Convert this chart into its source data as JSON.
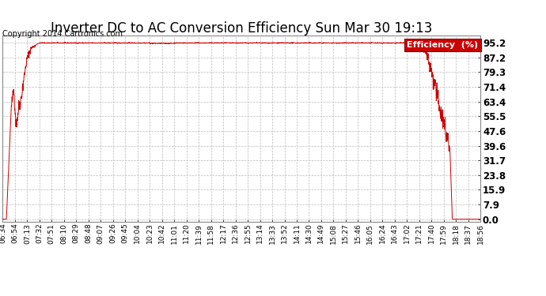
{
  "title": "Inverter DC to AC Conversion Efficiency Sun Mar 30 19:13",
  "copyright": "Copyright 2014 Cartronics.com",
  "legend_label": "Efficiency  (%)",
  "legend_bg": "#cc0000",
  "legend_text_color": "#ffffff",
  "line_color": "#cc0000",
  "background_color": "#ffffff",
  "grid_color": "#bbbbbb",
  "yticks": [
    0.0,
    7.9,
    15.9,
    23.8,
    31.7,
    39.6,
    47.6,
    55.5,
    63.4,
    71.4,
    79.3,
    87.2,
    95.2
  ],
  "ylim": [
    -1.5,
    99
  ],
  "xtick_labels": [
    "06:34",
    "06:54",
    "07:13",
    "07:32",
    "07:51",
    "08:10",
    "08:29",
    "08:48",
    "09:07",
    "09:26",
    "09:45",
    "10:04",
    "10:23",
    "10:42",
    "11:01",
    "11:20",
    "11:39",
    "11:58",
    "12:17",
    "12:36",
    "12:55",
    "13:14",
    "13:33",
    "13:52",
    "14:11",
    "14:30",
    "14:49",
    "15:08",
    "15:27",
    "15:46",
    "16:05",
    "16:24",
    "16:43",
    "17:02",
    "17:21",
    "17:40",
    "17:59",
    "18:18",
    "18:37",
    "18:56"
  ],
  "title_fontsize": 12,
  "copyright_fontsize": 7,
  "ytick_fontsize": 8.5,
  "xtick_fontsize": 6.5
}
